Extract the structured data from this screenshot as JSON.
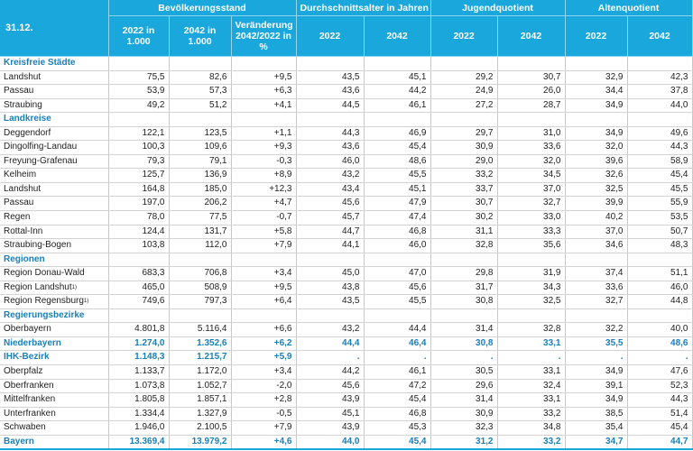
{
  "header": {
    "date": "31.12.",
    "groups": [
      "Bevölkerungsstand",
      "Durchschnittsalter in Jahren",
      "Jugendquotient",
      "Altenquotient"
    ],
    "pop_2022": "2022 in 1.000",
    "pop_2042": "2042 in 1.000",
    "change": "Veränderung 2042/2022 in %",
    "y2022": "2022",
    "y2042": "2042"
  },
  "rows": [
    {
      "type": "section",
      "label": "Kreisfreie Städte"
    },
    {
      "label": "Landshut",
      "v": [
        "75,5",
        "82,6",
        "+9,5",
        "43,5",
        "45,1",
        "29,2",
        "30,7",
        "32,9",
        "42,3"
      ]
    },
    {
      "label": "Passau",
      "v": [
        "53,9",
        "57,3",
        "+6,3",
        "43,6",
        "44,2",
        "24,9",
        "26,0",
        "34,4",
        "37,8"
      ]
    },
    {
      "label": "Straubing",
      "v": [
        "49,2",
        "51,2",
        "+4,1",
        "44,5",
        "46,1",
        "27,2",
        "28,7",
        "34,9",
        "44,0"
      ]
    },
    {
      "type": "section",
      "label": "Landkreise"
    },
    {
      "label": "Deggendorf",
      "v": [
        "122,1",
        "123,5",
        "+1,1",
        "44,3",
        "46,9",
        "29,7",
        "31,0",
        "34,9",
        "49,6"
      ]
    },
    {
      "label": "Dingolfing-Landau",
      "v": [
        "100,3",
        "109,6",
        "+9,3",
        "43,6",
        "45,4",
        "30,9",
        "33,6",
        "32,0",
        "44,3"
      ]
    },
    {
      "label": "Freyung-Grafenau",
      "v": [
        "79,3",
        "79,1",
        "-0,3",
        "46,0",
        "48,6",
        "29,0",
        "32,0",
        "39,6",
        "58,9"
      ]
    },
    {
      "label": "Kelheim",
      "v": [
        "125,7",
        "136,9",
        "+8,9",
        "43,2",
        "45,5",
        "33,2",
        "34,5",
        "32,6",
        "45,4"
      ]
    },
    {
      "label": "Landshut",
      "v": [
        "164,8",
        "185,0",
        "+12,3",
        "43,4",
        "45,1",
        "33,7",
        "37,0",
        "32,5",
        "45,5"
      ]
    },
    {
      "label": "Passau",
      "v": [
        "197,0",
        "206,2",
        "+4,7",
        "45,6",
        "47,9",
        "30,7",
        "32,7",
        "39,9",
        "55,9"
      ]
    },
    {
      "label": "Regen",
      "v": [
        "78,0",
        "77,5",
        "-0,7",
        "45,7",
        "47,4",
        "30,2",
        "33,0",
        "40,2",
        "53,5"
      ]
    },
    {
      "label": "Rottal-Inn",
      "v": [
        "124,4",
        "131,7",
        "+5,8",
        "44,7",
        "46,8",
        "31,1",
        "33,3",
        "37,0",
        "50,7"
      ]
    },
    {
      "label": "Straubing-Bogen",
      "v": [
        "103,8",
        "112,0",
        "+7,9",
        "44,1",
        "46,0",
        "32,8",
        "35,6",
        "34,6",
        "48,3"
      ]
    },
    {
      "type": "section",
      "label": "Regionen"
    },
    {
      "label": "Region Donau-Wald",
      "v": [
        "683,3",
        "706,8",
        "+3,4",
        "45,0",
        "47,0",
        "29,8",
        "31,9",
        "37,4",
        "51,1"
      ]
    },
    {
      "label": "Region Landshut",
      "fn": "1)",
      "v": [
        "465,0",
        "508,9",
        "+9,5",
        "43,8",
        "45,6",
        "31,7",
        "34,3",
        "33,6",
        "46,0"
      ]
    },
    {
      "label": "Region Regensburg",
      "fn": "1)",
      "v": [
        "749,6",
        "797,3",
        "+6,4",
        "43,5",
        "45,5",
        "30,8",
        "32,5",
        "32,7",
        "44,8"
      ]
    },
    {
      "type": "section",
      "label": "Regierungsbezirke"
    },
    {
      "label": "Oberbayern",
      "v": [
        "4.801,8",
        "5.116,4",
        "+6,6",
        "43,2",
        "44,4",
        "31,4",
        "32,8",
        "32,2",
        "40,0"
      ]
    },
    {
      "type": "bold",
      "label": "Niederbayern",
      "v": [
        "1.274,0",
        "1.352,6",
        "+6,2",
        "44,4",
        "46,4",
        "30,8",
        "33,1",
        "35,5",
        "48,6"
      ]
    },
    {
      "type": "bold",
      "label": "IHK-Bezirk",
      "v": [
        "1.148,3",
        "1.215,7",
        "+5,9",
        ".",
        ".",
        ".",
        ".",
        ".",
        "."
      ]
    },
    {
      "label": "Oberpfalz",
      "v": [
        "1.133,7",
        "1.172,0",
        "+3,4",
        "44,2",
        "46,1",
        "30,5",
        "33,1",
        "34,9",
        "47,6"
      ]
    },
    {
      "label": "Oberfranken",
      "v": [
        "1.073,8",
        "1.052,7",
        "-2,0",
        "45,6",
        "47,2",
        "29,6",
        "32,4",
        "39,1",
        "52,3"
      ]
    },
    {
      "label": "Mittelfranken",
      "v": [
        "1.805,8",
        "1.857,1",
        "+2,8",
        "43,9",
        "45,4",
        "31,4",
        "33,1",
        "34,9",
        "44,3"
      ]
    },
    {
      "label": "Unterfranken",
      "v": [
        "1.334,4",
        "1.327,9",
        "-0,5",
        "45,1",
        "46,8",
        "30,9",
        "33,2",
        "38,5",
        "51,4"
      ]
    },
    {
      "label": "Schwaben",
      "v": [
        "1.946,0",
        "2.100,5",
        "+7,9",
        "43,9",
        "45,3",
        "32,3",
        "34,8",
        "35,4",
        "45,4"
      ]
    },
    {
      "type": "bold",
      "last": true,
      "label": "Bayern",
      "v": [
        "13.369,4",
        "13.979,2",
        "+4,6",
        "44,0",
        "45,4",
        "31,2",
        "33,2",
        "34,7",
        "44,7"
      ]
    }
  ],
  "colors": {
    "header_bg": "#1aa7dc",
    "accent_text": "#1a7fb8"
  }
}
